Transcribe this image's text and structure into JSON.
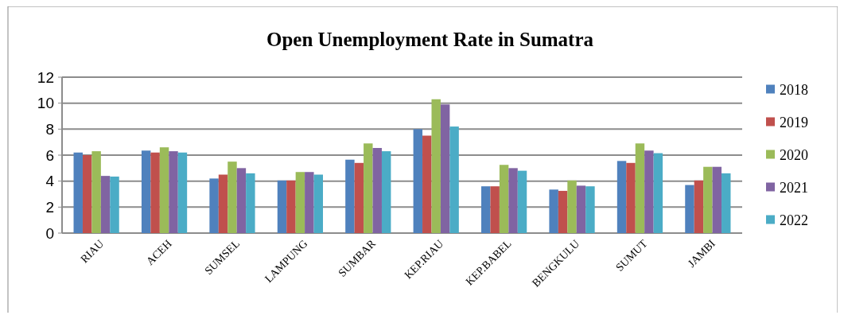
{
  "chart_data": {
    "type": "bar",
    "title": "Open Unemployment Rate in Sumatra",
    "categories": [
      "RIAU",
      "ACEH",
      "SUMSEL",
      "LAMPUNG",
      "SUMBAR",
      "KEP.RIAU",
      "KEP.BABEL",
      "BENGKULU",
      "SUMUT",
      "JAMBI"
    ],
    "series": [
      {
        "name": "2018",
        "color": "#4f81bd",
        "values": [
          6.2,
          6.35,
          4.2,
          4.05,
          5.65,
          8.0,
          3.6,
          3.35,
          5.55,
          3.7
        ]
      },
      {
        "name": "2019",
        "color": "#c0504d",
        "values": [
          6.0,
          6.2,
          4.5,
          4.05,
          5.4,
          7.5,
          3.6,
          3.25,
          5.4,
          4.05
        ]
      },
      {
        "name": "2020",
        "color": "#9bbb59",
        "values": [
          6.3,
          6.6,
          5.5,
          4.7,
          6.9,
          10.3,
          5.25,
          4.05,
          6.9,
          5.1
        ]
      },
      {
        "name": "2021",
        "color": "#8064a2",
        "values": [
          4.4,
          6.3,
          5.0,
          4.7,
          6.55,
          9.9,
          5.0,
          3.65,
          6.35,
          5.1
        ]
      },
      {
        "name": "2022",
        "color": "#4bacc6",
        "values": [
          4.35,
          6.2,
          4.6,
          4.5,
          6.3,
          8.2,
          4.8,
          3.6,
          6.15,
          4.6
        ]
      }
    ],
    "ylim": [
      0,
      12
    ],
    "yticks": [
      0,
      2,
      4,
      6,
      8,
      10,
      12
    ],
    "grid": "y",
    "legend": "right"
  }
}
